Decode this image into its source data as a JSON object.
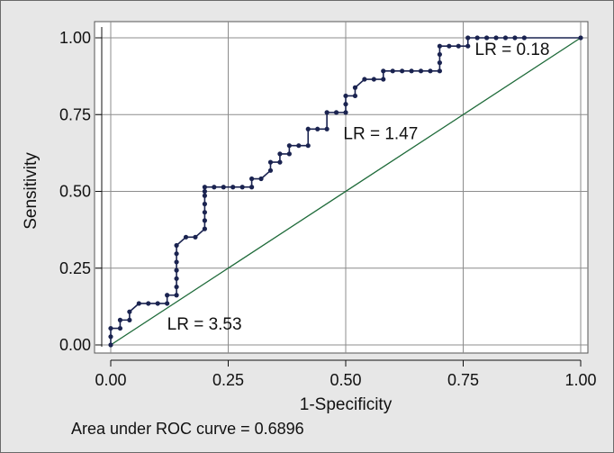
{
  "chart_data": {
    "type": "line",
    "xlabel": "1-Specificity",
    "ylabel": "Sensitivity",
    "xlim": [
      0,
      1
    ],
    "ylim": [
      0,
      1
    ],
    "x_ticks": [
      "0.00",
      "0.25",
      "0.50",
      "0.75",
      "1.00"
    ],
    "y_ticks": [
      "0.00",
      "0.25",
      "0.50",
      "0.75",
      "1.00"
    ],
    "grid": true,
    "footnote": "Area under ROC curve = 0.6896",
    "colors": {
      "roc": "#1a2350",
      "reference": "#1f6b3a",
      "grid": "#8c8c8c",
      "plot_bg": "#ffffff"
    },
    "series": [
      {
        "x": [
          0,
          0,
          0,
          0.02,
          0.02,
          0.04,
          0.04,
          0.06,
          0.08,
          0.1,
          0.12,
          0.12,
          0.14,
          0.14,
          0.14,
          0.14,
          0.14,
          0.14,
          0.14,
          0.16,
          0.18,
          0.2,
          0.2,
          0.2,
          0.2,
          0.2,
          0.2,
          0.2,
          0.22,
          0.24,
          0.26,
          0.28,
          0.3,
          0.3,
          0.32,
          0.34,
          0.34,
          0.36,
          0.36,
          0.38,
          0.38,
          0.4,
          0.42,
          0.42,
          0.44,
          0.46,
          0.46,
          0.48,
          0.5,
          0.5,
          0.5,
          0.52,
          0.52,
          0.54,
          0.56,
          0.58,
          0.58,
          0.6,
          0.62,
          0.64,
          0.66,
          0.68,
          0.7,
          0.7,
          0.7,
          0.7,
          0.72,
          0.74,
          0.76,
          0.76,
          0.78,
          0.8,
          0.82,
          0.84,
          0.86,
          0.88,
          1.0
        ],
        "y": [
          0,
          0.027,
          0.054,
          0.054,
          0.081,
          0.081,
          0.108,
          0.135,
          0.135,
          0.135,
          0.135,
          0.162,
          0.162,
          0.189,
          0.216,
          0.243,
          0.27,
          0.297,
          0.324,
          0.351,
          0.351,
          0.378,
          0.405,
          0.432,
          0.459,
          0.486,
          0.5,
          0.514,
          0.514,
          0.514,
          0.514,
          0.514,
          0.514,
          0.541,
          0.541,
          0.568,
          0.595,
          0.595,
          0.622,
          0.622,
          0.649,
          0.649,
          0.649,
          0.703,
          0.703,
          0.703,
          0.757,
          0.757,
          0.757,
          0.784,
          0.811,
          0.811,
          0.838,
          0.865,
          0.865,
          0.865,
          0.892,
          0.892,
          0.892,
          0.892,
          0.892,
          0.892,
          0.892,
          0.919,
          0.946,
          0.973,
          0.973,
          0.973,
          0.973,
          1.0,
          1.0,
          1.0,
          1.0,
          1.0,
          1.0,
          1.0,
          1.0
        ]
      },
      {
        "x": [
          0,
          1
        ],
        "y": [
          0,
          1
        ]
      }
    ],
    "annotations": [
      {
        "text": "LR = 3.53",
        "x": 0.12,
        "y": 0.07
      },
      {
        "text": "LR = 1.47",
        "x": 0.495,
        "y": 0.69
      },
      {
        "text": "LR = 0.18",
        "x": 0.775,
        "y": 0.965
      }
    ]
  }
}
